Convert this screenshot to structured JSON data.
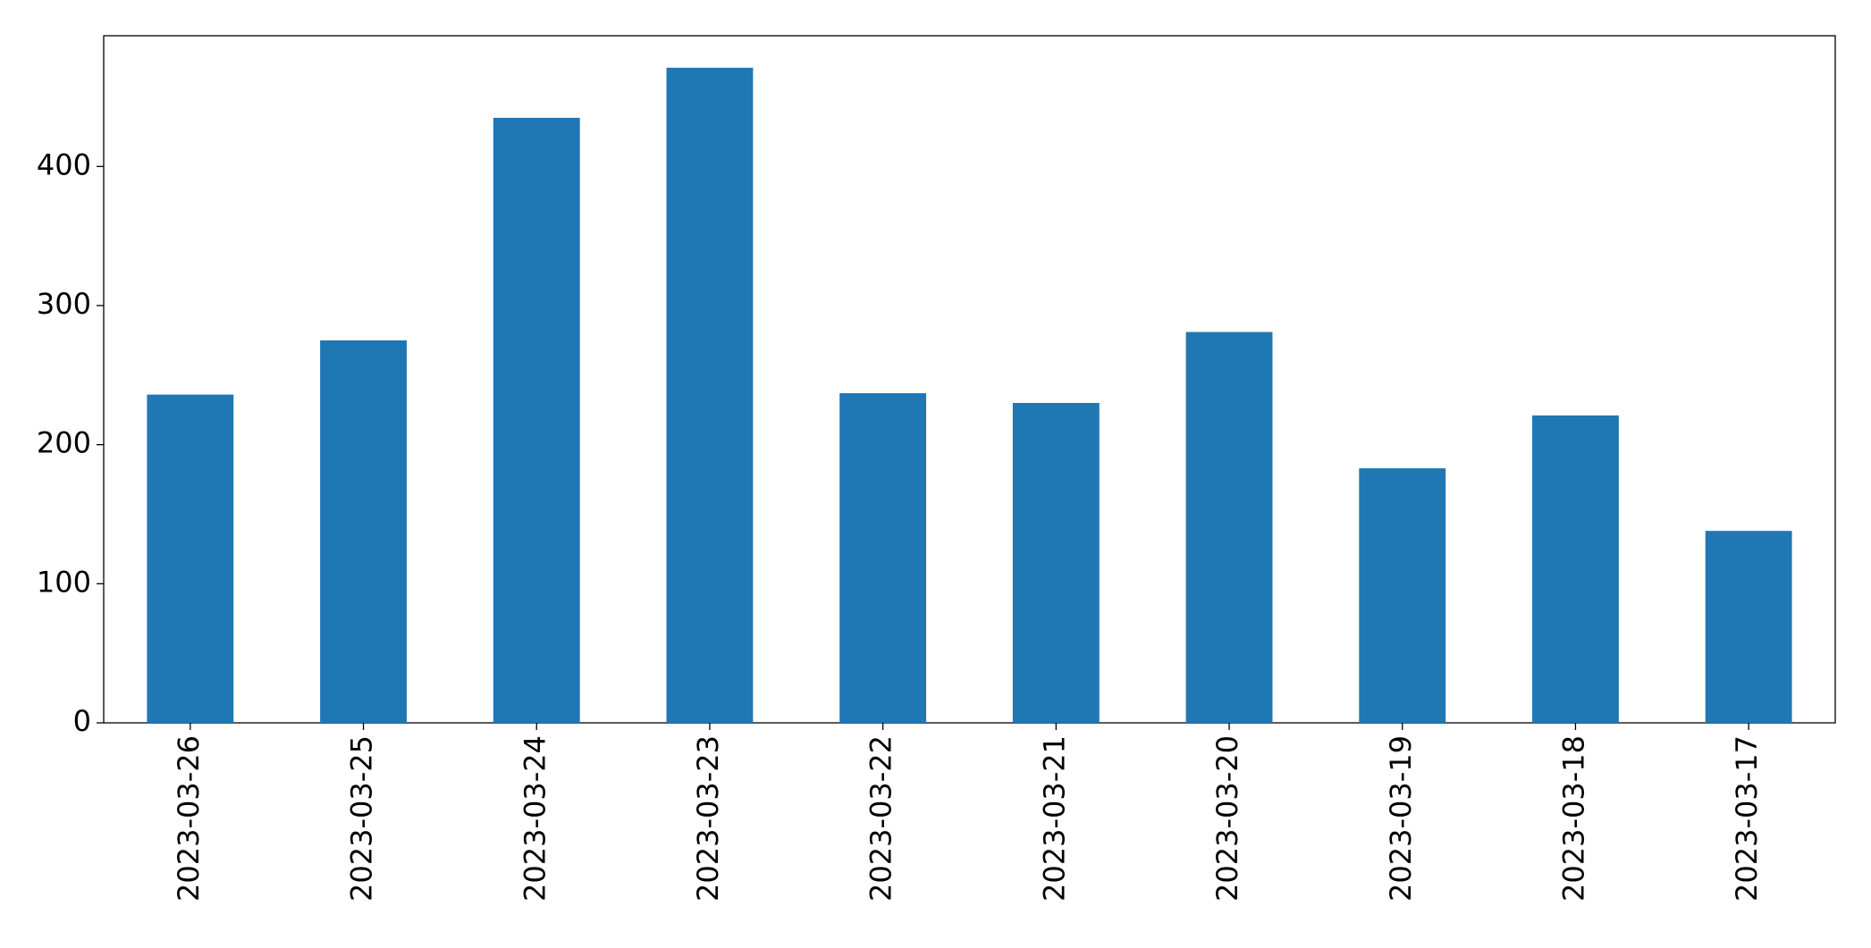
{
  "chart_data": {
    "type": "bar",
    "categories": [
      "2023-03-26",
      "2023-03-25",
      "2023-03-24",
      "2023-03-23",
      "2023-03-22",
      "2023-03-21",
      "2023-03-20",
      "2023-03-19",
      "2023-03-18",
      "2023-03-17"
    ],
    "values": [
      236,
      275,
      435,
      471,
      237,
      230,
      281,
      183,
      221,
      138
    ],
    "color": "#1f77b4",
    "ylim": [
      0,
      494
    ],
    "yticks": [
      0,
      100,
      200,
      300,
      400
    ],
    "grid": false
  }
}
